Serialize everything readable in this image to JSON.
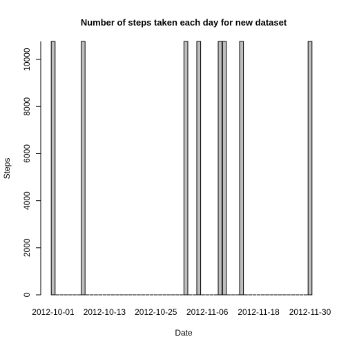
{
  "chart_data": {
    "type": "bar",
    "title": "Number of steps taken each day for new dataset",
    "xlabel": "Date",
    "ylabel": "Steps",
    "x_start": "2012-10-01",
    "x_end": "2012-11-30",
    "xticks": [
      "2012-10-01",
      "2012-10-13",
      "2012-10-25",
      "2012-11-06",
      "2012-11-18",
      "2012-11-30"
    ],
    "yticks": [
      0,
      2000,
      4000,
      6000,
      8000,
      10000
    ],
    "ylim": [
      0,
      10766.19
    ],
    "points": [
      {
        "date": "2012-10-01",
        "steps": 10766.19
      },
      {
        "date": "2012-10-08",
        "steps": 10766.19
      },
      {
        "date": "2012-11-01",
        "steps": 10766.19
      },
      {
        "date": "2012-11-04",
        "steps": 10766.19
      },
      {
        "date": "2012-11-09",
        "steps": 10766.19
      },
      {
        "date": "2012-11-10",
        "steps": 10766.19
      },
      {
        "date": "2012-11-14",
        "steps": 10766.19
      },
      {
        "date": "2012-11-30",
        "steps": 10766.19
      }
    ],
    "bar_color": "#bebebe",
    "grid": false,
    "legend": "none"
  }
}
